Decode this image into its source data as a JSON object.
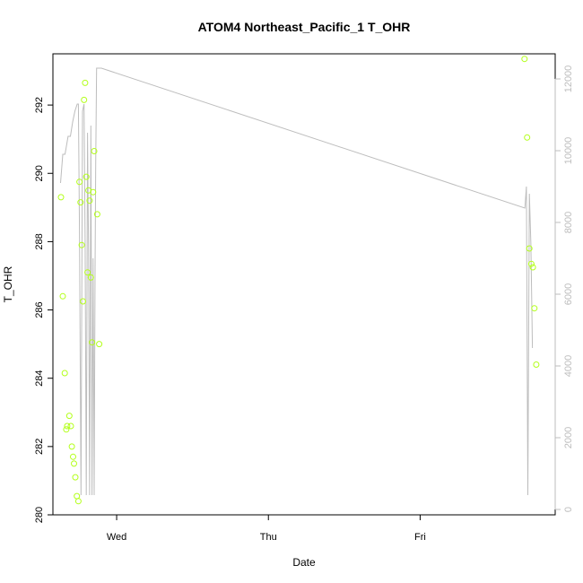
{
  "chart_data": {
    "type": "scatter",
    "title": "ATOM4 Northeast_Pacific_1 T_OHR",
    "xlabel": "Date",
    "ylabel": "T_OHR",
    "x_ticks": [
      {
        "label": "Wed",
        "value": 1.0
      },
      {
        "label": "Thu",
        "value": 2.0
      },
      {
        "label": "Fri",
        "value": 3.0
      }
    ],
    "xlim": [
      0.58,
      3.89
    ],
    "ylim": [
      280.0,
      293.5
    ],
    "y_ticks": [
      280,
      282,
      284,
      286,
      288,
      290,
      292
    ],
    "y2lim": [
      -150,
      12700
    ],
    "y2_ticks": [
      0,
      2000,
      4000,
      6000,
      8000,
      10000,
      12000
    ],
    "grid": false,
    "point_color": "#b3ff1a",
    "line_color": "#bdbdbd",
    "axis_color": "#000000",
    "right_axis_color": "#bdbdbd",
    "points": [
      {
        "x": 0.633,
        "y": 289.3
      },
      {
        "x": 0.645,
        "y": 286.4
      },
      {
        "x": 0.658,
        "y": 284.15
      },
      {
        "x": 0.668,
        "y": 282.5
      },
      {
        "x": 0.674,
        "y": 282.6
      },
      {
        "x": 0.688,
        "y": 282.9
      },
      {
        "x": 0.698,
        "y": 282.6
      },
      {
        "x": 0.705,
        "y": 282.0
      },
      {
        "x": 0.713,
        "y": 281.7
      },
      {
        "x": 0.719,
        "y": 281.5
      },
      {
        "x": 0.728,
        "y": 281.1
      },
      {
        "x": 0.738,
        "y": 280.55
      },
      {
        "x": 0.748,
        "y": 280.4
      },
      {
        "x": 0.755,
        "y": 289.75
      },
      {
        "x": 0.762,
        "y": 289.15
      },
      {
        "x": 0.77,
        "y": 287.9
      },
      {
        "x": 0.778,
        "y": 286.25
      },
      {
        "x": 0.785,
        "y": 292.15
      },
      {
        "x": 0.792,
        "y": 292.65
      },
      {
        "x": 0.8,
        "y": 289.9
      },
      {
        "x": 0.808,
        "y": 287.1
      },
      {
        "x": 0.814,
        "y": 289.5
      },
      {
        "x": 0.822,
        "y": 289.2
      },
      {
        "x": 0.83,
        "y": 286.95
      },
      {
        "x": 0.838,
        "y": 285.05
      },
      {
        "x": 0.845,
        "y": 289.45
      },
      {
        "x": 0.852,
        "y": 290.65
      },
      {
        "x": 0.872,
        "y": 288.8
      },
      {
        "x": 0.885,
        "y": 285.0
      },
      {
        "x": 3.688,
        "y": 293.35
      },
      {
        "x": 3.705,
        "y": 291.05
      },
      {
        "x": 3.72,
        "y": 287.8
      },
      {
        "x": 3.733,
        "y": 287.35
      },
      {
        "x": 3.743,
        "y": 287.25
      },
      {
        "x": 3.753,
        "y": 286.05
      },
      {
        "x": 3.765,
        "y": 284.4
      }
    ],
    "line_series": {
      "axis": "right",
      "x": [
        0.63,
        0.645,
        0.66,
        0.68,
        0.695,
        0.71,
        0.725,
        0.74,
        0.748,
        0.755,
        0.765,
        0.775,
        0.785,
        0.792,
        0.8,
        0.808,
        0.815,
        0.822,
        0.83,
        0.838,
        0.845,
        0.852,
        0.858,
        0.862,
        0.868,
        0.875,
        0.88,
        0.9,
        3.69,
        3.7,
        3.71,
        3.72,
        3.73,
        3.74
      ],
      "y": [
        9100,
        9900,
        9900,
        10400,
        10400,
        10800,
        11100,
        11300,
        11300,
        7800,
        400,
        11100,
        11300,
        7500,
        400,
        10500,
        7000,
        400,
        10700,
        400,
        7000,
        400,
        6700,
        9600,
        12300,
        12300,
        12300,
        12300,
        8400,
        9000,
        400,
        8800,
        7400,
        4500
      ]
    }
  }
}
